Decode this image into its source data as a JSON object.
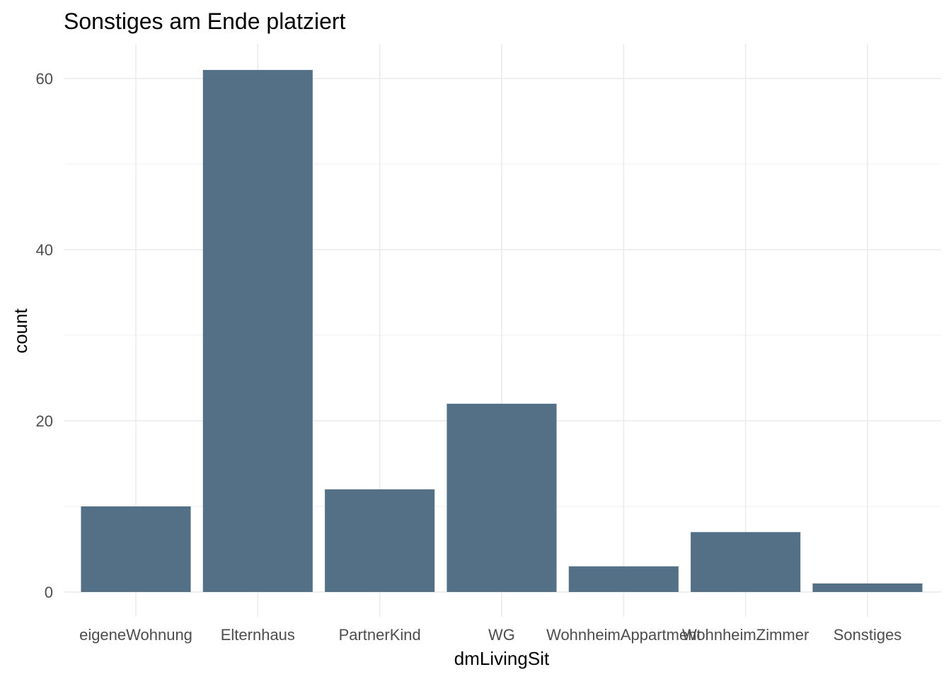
{
  "chart_data": {
    "type": "bar",
    "title": "Sonstiges am Ende platziert",
    "xlabel": "dmLivingSit",
    "ylabel": "count",
    "categories": [
      "eigeneWohnung",
      "Elternhaus",
      "PartnerKind",
      "WG",
      "WohnheimAppartment",
      "WohnheimZimmer",
      "Sonstiges"
    ],
    "values": [
      10,
      61,
      12,
      22,
      3,
      7,
      1
    ],
    "yticks": [
      0,
      20,
      40,
      60
    ],
    "ylim": [
      -3,
      65
    ],
    "bar_color": "#537087",
    "grid": true,
    "legend": "none"
  }
}
